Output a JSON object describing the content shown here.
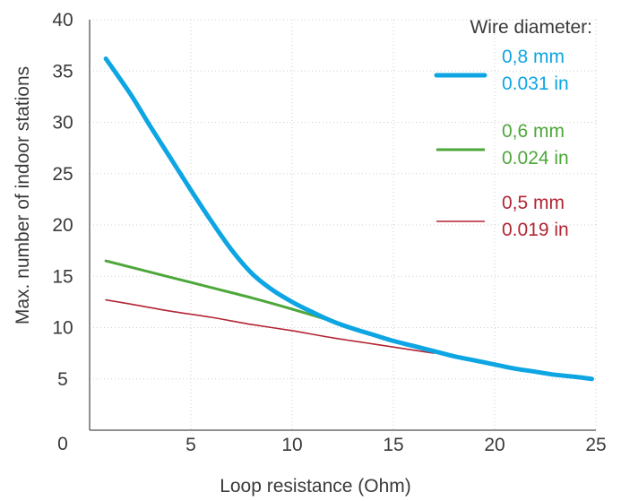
{
  "chart_data": {
    "type": "line",
    "title": "",
    "xlabel": "Loop resistance (Ohm)",
    "ylabel": "Max. number of indoor stations",
    "xlim": [
      0,
      25
    ],
    "ylim": [
      0,
      40
    ],
    "x_ticks": [
      5,
      10,
      15,
      20,
      25
    ],
    "x_tick_labels": [
      "5",
      "10",
      "15",
      "20",
      "25"
    ],
    "y_ticks": [
      0,
      5,
      10,
      15,
      20,
      25,
      30,
      35,
      40
    ],
    "y_tick_labels": [
      "0",
      "5",
      "10",
      "15",
      "20",
      "25",
      "30",
      "35",
      "40"
    ],
    "grid": "dotted",
    "legend_title": "Wire diameter:",
    "legend_position": "top-right",
    "series": [
      {
        "name": "0,8 mm 0.031 in",
        "label_lines": [
          "0,8 mm",
          "0.031 in"
        ],
        "color": "#0ea5e3",
        "points": [
          [
            0.8,
            36.2
          ],
          [
            2,
            32.8
          ],
          [
            3,
            29.6
          ],
          [
            4,
            26.5
          ],
          [
            5,
            23.4
          ],
          [
            6,
            20.4
          ],
          [
            7,
            17.6
          ],
          [
            8,
            15.3
          ],
          [
            9,
            13.7
          ],
          [
            10,
            12.5
          ],
          [
            11,
            11.5
          ],
          [
            12,
            10.6
          ],
          [
            13,
            9.9
          ],
          [
            14,
            9.3
          ],
          [
            15,
            8.7
          ],
          [
            16,
            8.2
          ],
          [
            17,
            7.7
          ],
          [
            18,
            7.2
          ],
          [
            19,
            6.8
          ],
          [
            20,
            6.4
          ],
          [
            21,
            6.0
          ],
          [
            22,
            5.7
          ],
          [
            23,
            5.4
          ],
          [
            24,
            5.2
          ],
          [
            24.8,
            5.0
          ]
        ]
      },
      {
        "name": "0,6 mm 0.024 in",
        "label_lines": [
          "0,6 mm",
          "0.024 in"
        ],
        "color": "#4ea73a",
        "points": [
          [
            0.8,
            16.5
          ],
          [
            2,
            15.9
          ],
          [
            4,
            14.9
          ],
          [
            6,
            13.9
          ],
          [
            8,
            12.9
          ],
          [
            10,
            11.8
          ],
          [
            12,
            10.6
          ],
          [
            13,
            9.9
          ],
          [
            14,
            9.3
          ],
          [
            15,
            8.7
          ]
        ]
      },
      {
        "name": "0,5 mm 0.019 in",
        "label_lines": [
          "0,5 mm",
          "0.019 in"
        ],
        "color": "#b32534",
        "points": [
          [
            0.8,
            12.7
          ],
          [
            2,
            12.3
          ],
          [
            4,
            11.6
          ],
          [
            6,
            11.0
          ],
          [
            8,
            10.3
          ],
          [
            10,
            9.7
          ],
          [
            12,
            9.0
          ],
          [
            14,
            8.4
          ],
          [
            16,
            7.8
          ],
          [
            17,
            7.5
          ]
        ]
      }
    ]
  }
}
